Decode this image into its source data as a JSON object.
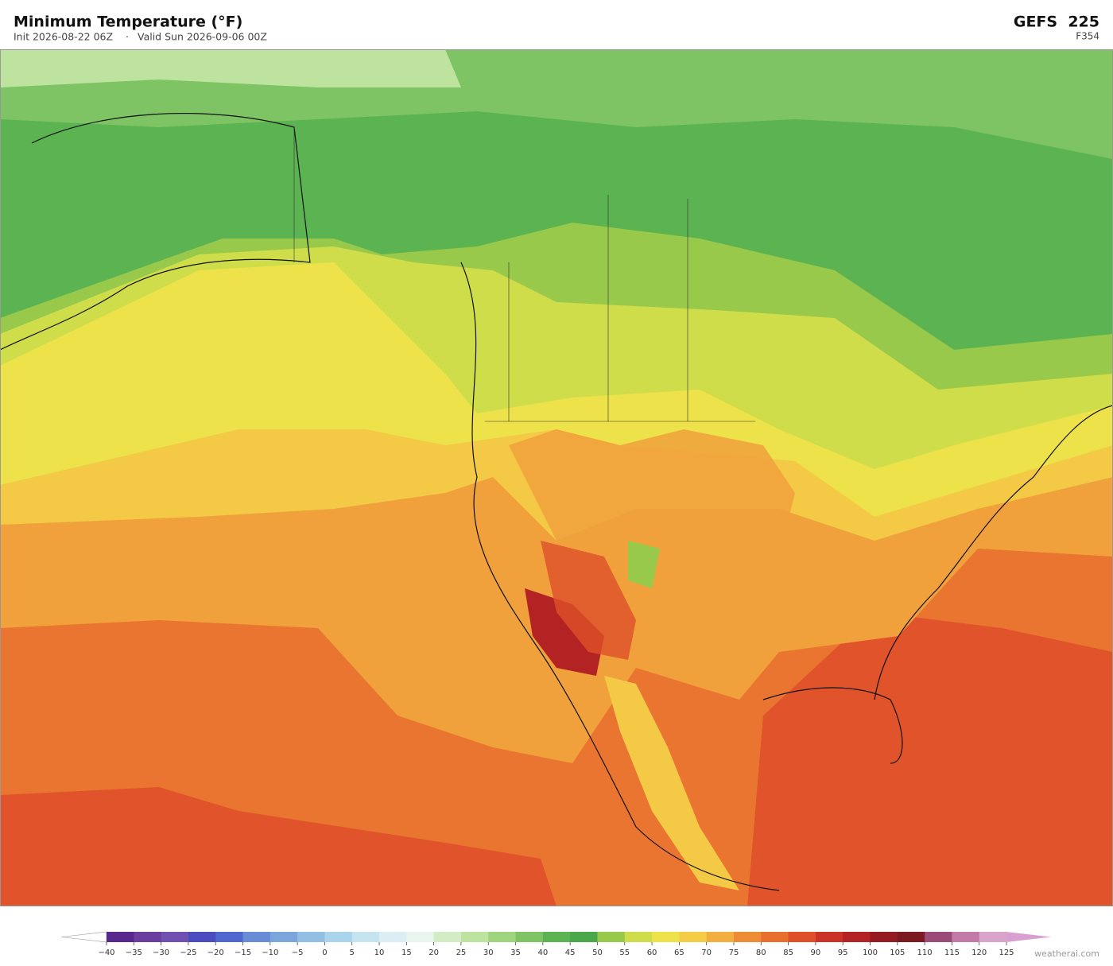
{
  "header": {
    "title": "Minimum Temperature  (°F)",
    "init": "Init 2026-08-22 06Z",
    "separator": "·",
    "valid": "Valid Sun 2026-09-06 00Z",
    "model": "GEFS  225",
    "forecast_hour": "F354"
  },
  "colorbar": {
    "ticks": [
      {
        "value": -40,
        "label": "−40"
      },
      {
        "value": -35,
        "label": "−35"
      },
      {
        "value": -30,
        "label": "−30"
      },
      {
        "value": -25,
        "label": "−25"
      },
      {
        "value": -20,
        "label": "−20"
      },
      {
        "value": -15,
        "label": "−15"
      },
      {
        "value": -10,
        "label": "−10"
      },
      {
        "value": -5,
        "label": "−5"
      },
      0,
      5,
      10,
      15,
      20,
      25,
      30,
      35,
      40,
      45,
      50,
      55,
      60,
      65,
      70,
      75,
      80,
      85,
      90,
      95,
      100,
      105,
      110,
      115,
      120,
      125
    ],
    "colors": [
      "#58288e",
      "#6b3d9f",
      "#7050b0",
      "#4a4cc0",
      "#4f68cf",
      "#688cd5",
      "#7aa6dc",
      "#93bfe4",
      "#aad3ec",
      "#c5e4f0",
      "#dbeef3",
      "#e8f5ec",
      "#d3ecc6",
      "#bde39e",
      "#9fd47e",
      "#7ec464",
      "#5bb352",
      "#4aa84a",
      "#98c94b",
      "#cfdd4a",
      "#ede24a",
      "#f4cc45",
      "#f2ae3e",
      "#ee8c35",
      "#e8702e",
      "#df5029",
      "#cb3327",
      "#b32324",
      "#941b22",
      "#7c1a22",
      "#9c4a7a",
      "#c27aa8",
      "#daa3cc"
    ],
    "under_color": "#ffffff",
    "over_color": "#d8a0d0"
  },
  "footer": {
    "credit": "weatherai.com"
  }
}
